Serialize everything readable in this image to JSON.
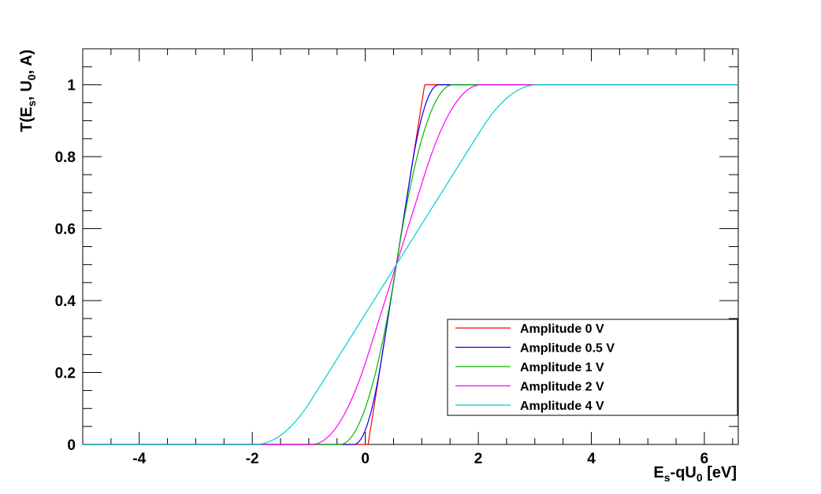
{
  "chart_data": {
    "type": "line",
    "title": "",
    "xlabel": "E_s-qU_0 [eV]",
    "ylabel": "T(E_s, U_0, A)",
    "xlim": [
      -5,
      6.6
    ],
    "ylim": [
      0,
      1.1
    ],
    "xticks": [
      -4,
      -2,
      0,
      2,
      4,
      6
    ],
    "xtick_labels": [
      "-4",
      "-2",
      "0",
      "2",
      "4",
      "6"
    ],
    "yticks": [
      0,
      0.2,
      0.4,
      0.6,
      0.8,
      1
    ],
    "ytick_labels": [
      "0",
      "0.2",
      "0.4",
      "0.6",
      "0.8",
      "1"
    ],
    "grid": false,
    "legend_position": "bottom-right",
    "center": 0.55,
    "half_width": 0.5,
    "series": [
      {
        "name": "Amplitude 0 V",
        "amplitude": 0,
        "color": "#ff0000"
      },
      {
        "name": "Amplitude 0.5 V",
        "amplitude": 0.5,
        "color": "#0000ff"
      },
      {
        "name": "Amplitude 1 V",
        "amplitude": 1,
        "color": "#00bb00"
      },
      {
        "name": "Amplitude 2 V",
        "amplitude": 2,
        "color": "#ff00ff"
      },
      {
        "name": "Amplitude 4 V",
        "amplitude": 4,
        "color": "#00cccc"
      }
    ]
  }
}
